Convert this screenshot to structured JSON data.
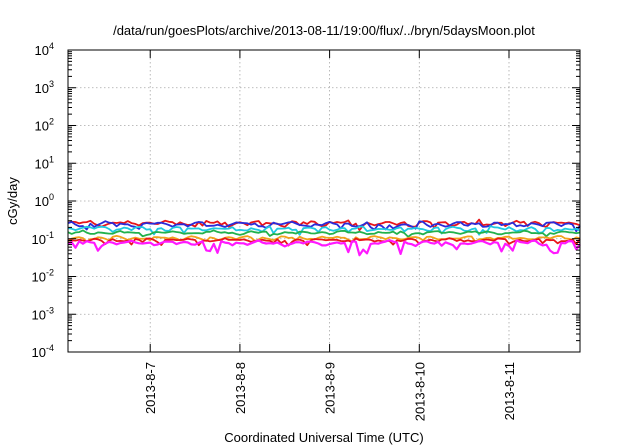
{
  "chart_data": {
    "type": "line",
    "title": "/data/run/goesPlots/archive/2013-08-11/19:00/flux/../bryn/5daysMoon.plot",
    "xlabel": "Coordinated Universal Time (UTC)",
    "ylabel": "cGy/day",
    "yscale": "log",
    "ylim": [
      0.0001,
      10000
    ],
    "xlim": [
      "2013-08-06 02:00",
      "2013-08-11 19:00"
    ],
    "grid": true,
    "y_ticks": [
      {
        "base": "10",
        "exp": "-4",
        "value": 0.0001
      },
      {
        "base": "10",
        "exp": "-3",
        "value": 0.001
      },
      {
        "base": "10",
        "exp": "-2",
        "value": 0.01
      },
      {
        "base": "10",
        "exp": "-1",
        "value": 0.1
      },
      {
        "base": "10",
        "exp": "0",
        "value": 1
      },
      {
        "base": "10",
        "exp": "1",
        "value": 10
      },
      {
        "base": "10",
        "exp": "2",
        "value": 100
      },
      {
        "base": "10",
        "exp": "3",
        "value": 1000
      },
      {
        "base": "10",
        "exp": "4",
        "value": 10000
      }
    ],
    "x_ticks": [
      {
        "label": "2013-8-7",
        "value": "2013-08-07 00:00"
      },
      {
        "label": "2013-8-8",
        "value": "2013-08-08 00:00"
      },
      {
        "label": "2013-8-9",
        "value": "2013-08-09 00:00"
      },
      {
        "label": "2013-8-10",
        "value": "2013-08-10 00:00"
      },
      {
        "label": "2013-8-11",
        "value": "2013-08-11 00:00"
      }
    ],
    "sample_interval_hours": 1,
    "series": [
      {
        "color": "#e8151b",
        "level": 0.26,
        "variability": 0.16,
        "dip_depth": 0.25,
        "seed": 11
      },
      {
        "color": "#2b2bd8",
        "level": 0.24,
        "variability": 0.16,
        "dip_depth": 0.3,
        "seed": 23
      },
      {
        "color": "#1fc8e0",
        "level": 0.185,
        "variability": 0.13,
        "dip_depth": 0.3,
        "seed": 37
      },
      {
        "color": "#22b14c",
        "level": 0.145,
        "variability": 0.11,
        "dip_depth": 0.25,
        "seed": 41
      },
      {
        "color": "#f2a21a",
        "level": 0.105,
        "variability": 0.1,
        "dip_depth": 0.2,
        "seed": 53
      },
      {
        "color": "#e8151b",
        "level": 0.092,
        "variability": 0.1,
        "dip_depth": 0.25,
        "seed": 67
      },
      {
        "color": "#ff19ff",
        "level": 0.078,
        "variability": 0.14,
        "dip_depth": 0.55,
        "seed": 79
      }
    ]
  }
}
